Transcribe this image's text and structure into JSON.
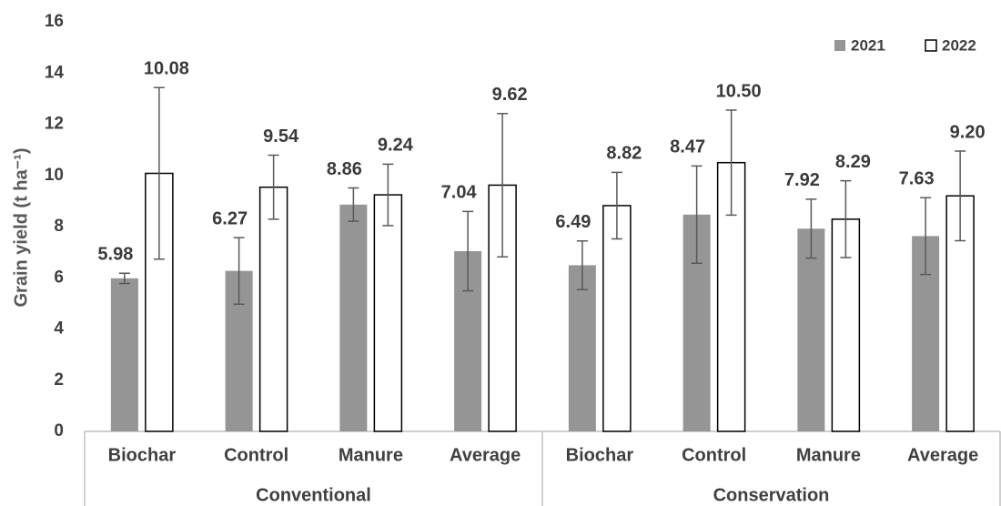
{
  "chart_data": {
    "type": "bar",
    "y_label": "Grain yield (t ha⁻¹)",
    "categories": [
      "Biochar",
      "Control",
      "Manure",
      "Average",
      "Biochar",
      "Control",
      "Manure",
      "Average"
    ],
    "groups": [
      "Conventional",
      "Conservation"
    ],
    "series": [
      {
        "name": "2021",
        "color": "#959595",
        "values": [
          5.98,
          6.27,
          8.86,
          7.04,
          6.49,
          8.47,
          7.92,
          7.63
        ],
        "value_labels": [
          "5.98",
          "6.27",
          "8.86",
          "7.04",
          "6.49",
          "8.47",
          "7.92",
          "7.63"
        ],
        "errors": [
          0.2,
          1.3,
          0.65,
          1.55,
          0.95,
          1.9,
          1.15,
          1.5
        ]
      },
      {
        "name": "2022",
        "color": "#ffffff",
        "values": [
          10.08,
          9.54,
          9.24,
          9.62,
          8.82,
          10.5,
          8.29,
          9.2
        ],
        "value_labels": [
          "10.08",
          "9.54",
          "9.24",
          "9.62",
          "8.82",
          "10.50",
          "8.29",
          "9.20"
        ],
        "errors": [
          3.35,
          1.25,
          1.2,
          2.8,
          1.3,
          2.05,
          1.5,
          1.75
        ]
      }
    ],
    "ylim": [
      0,
      16
    ],
    "yticks": [
      0,
      2,
      4,
      6,
      8,
      10,
      12,
      14,
      16
    ],
    "grid": false,
    "legend": "top-right"
  }
}
